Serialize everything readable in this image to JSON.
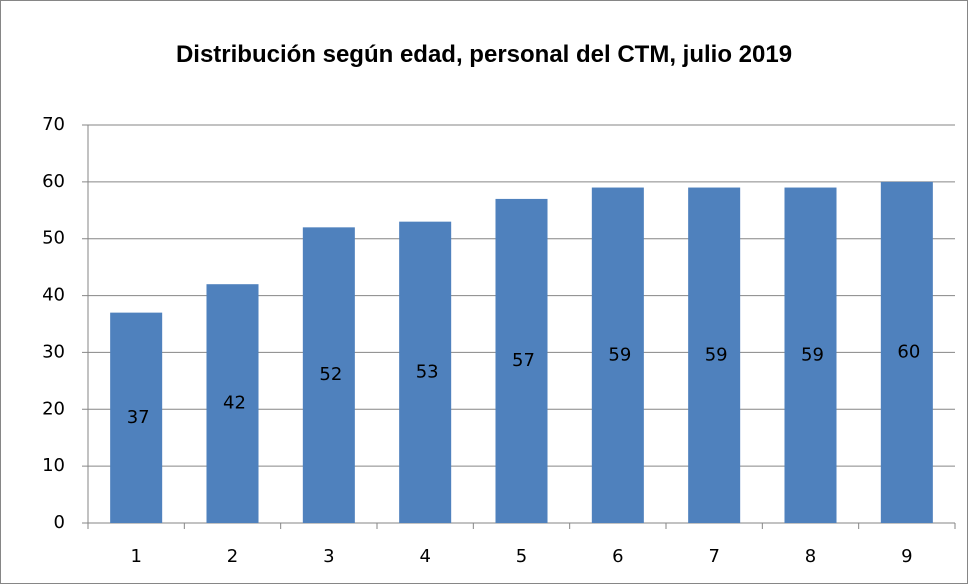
{
  "chart_data": {
    "type": "bar",
    "title": "Distribución según edad, personal del CTM, julio 2019",
    "categories": [
      "1",
      "2",
      "3",
      "4",
      "5",
      "6",
      "7",
      "8",
      "9"
    ],
    "values": [
      37,
      42,
      52,
      53,
      57,
      59,
      59,
      59,
      60
    ],
    "color": "#4f81bd",
    "ylim": [
      0,
      70
    ],
    "yticks": [
      0,
      10,
      20,
      30,
      40,
      50,
      60,
      70
    ],
    "grid": true
  }
}
